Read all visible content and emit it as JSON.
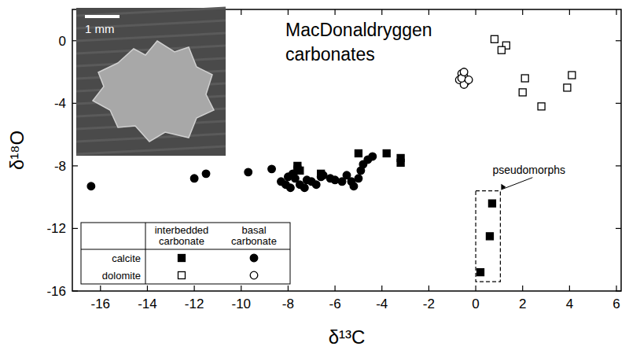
{
  "chart_data": {
    "type": "scatter",
    "title": "MacDonaldryggen carbonates",
    "x_label": "δ¹³C",
    "y_label": "δ¹⁸O",
    "xlim": [
      -17.2,
      6.2
    ],
    "ylim": [
      -16,
      2
    ],
    "xticks": [
      -16,
      -14,
      -12,
      -10,
      -8,
      -6,
      -4,
      -2,
      0,
      2,
      4,
      6
    ],
    "yticks": [
      -16,
      -12,
      -8,
      -4,
      0
    ],
    "grid": false,
    "legend": "lower left",
    "legend_table": {
      "columns": [
        "interbedded carbonate",
        "basal carbonate"
      ],
      "rows": [
        "calcite",
        "dolomite"
      ]
    },
    "inset": {
      "scale_bar_label": "1 mm"
    },
    "annotation": {
      "text": "pseudomorphs",
      "box_x": [
        0,
        1.05
      ],
      "box_y": [
        -15.4,
        -9.6
      ]
    },
    "series": [
      {
        "marker": "square",
        "color": "#000000",
        "x": [
          -7.6,
          -7.5,
          -6.6,
          -5.0,
          -3.8,
          -3.2,
          -3.2,
          0.7,
          0.6,
          0.2
        ],
        "values": [
          -8.0,
          -8.3,
          -8.5,
          -7.2,
          -7.2,
          -7.5,
          -7.8,
          -10.4,
          -12.5,
          -14.8
        ]
      },
      {
        "marker": "circle",
        "color": "#000000",
        "x": [
          -16.4,
          -12.0,
          -11.5,
          -9.7,
          -8.7,
          -8.3,
          -8.0,
          -7.8,
          -7.6,
          -7.5,
          -7.3,
          -7.0,
          -6.8,
          -6.5,
          -6.2,
          -6.0,
          -5.7,
          -5.5,
          -5.2,
          -5.0,
          -4.8,
          -4.6,
          -4.4,
          -7.7,
          -8.1,
          -7.2,
          -6.6,
          -5.3,
          -7.9,
          -4.9
        ],
        "values": [
          -9.3,
          -8.8,
          -8.5,
          -8.4,
          -8.2,
          -9.0,
          -8.7,
          -8.5,
          -8.1,
          -9.2,
          -9.4,
          -9.0,
          -9.2,
          -8.6,
          -8.8,
          -8.9,
          -9.0,
          -8.6,
          -9.3,
          -8.8,
          -7.9,
          -7.6,
          -7.4,
          -8.8,
          -9.2,
          -8.9,
          -8.7,
          -9.0,
          -9.4,
          -8.3
        ]
      },
      {
        "marker": "open-square",
        "color": "#000000",
        "x": [
          0.8,
          1.3,
          1.1,
          2.1,
          2.0,
          2.8,
          3.9,
          4.1
        ],
        "values": [
          0.1,
          -0.3,
          -0.6,
          -2.4,
          -3.3,
          -4.2,
          -3.0,
          -2.2
        ]
      },
      {
        "marker": "open-circle",
        "color": "#000000",
        "x": [
          -0.6,
          -0.5,
          -0.7,
          -0.4,
          -0.5,
          -0.6,
          -0.3,
          -0.5
        ],
        "values": [
          -2.1,
          -2.3,
          -2.5,
          -2.6,
          -2.8,
          -2.4,
          -2.5,
          -2.0
        ]
      }
    ]
  }
}
